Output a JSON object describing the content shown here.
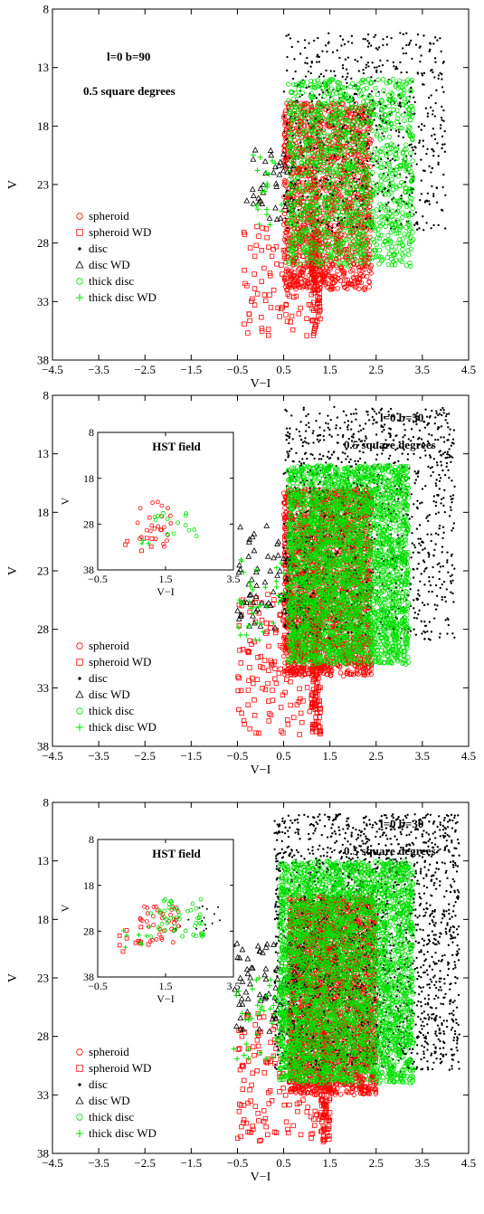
{
  "chart_data": [
    {
      "type": "scatter",
      "xlabel": "V−I",
      "ylabel": "V",
      "xlim": [
        -4.5,
        4.5
      ],
      "ylim": [
        8,
        38
      ],
      "y_inverted": true,
      "xticks": [
        "−4.5",
        "−3.5",
        "−2.5",
        "−1.5",
        "−0.5",
        "0.5",
        "1.5",
        "2.5",
        "3.5",
        "4.5"
      ],
      "yticks": [
        "8",
        "13",
        "18",
        "23",
        "28",
        "33",
        "38"
      ],
      "annotations": [
        "l=0 b=90",
        "0.5 square degrees"
      ],
      "legend_position": "left-middle",
      "series": [
        {
          "name": "spheroid",
          "marker": "circle-open",
          "color": "#ff0000",
          "regions": [
            {
              "x": [
                0.5,
                2.4
              ],
              "y": [
                16,
                32
              ],
              "n": 1400
            }
          ]
        },
        {
          "name": "spheroid WD",
          "marker": "square-open",
          "color": "#ff0000",
          "regions": [
            {
              "x": [
                -0.4,
                1.3
              ],
              "y": [
                26,
                36
              ],
              "n": 100
            },
            {
              "x": [
                1.1,
                1.3
              ],
              "y": [
                27,
                36
              ],
              "n": 80
            }
          ]
        },
        {
          "name": "disc",
          "marker": "dot",
          "color": "#000000",
          "regions": [
            {
              "x": [
                0.5,
                4.0
              ],
              "y": [
                10,
                27
              ],
              "n": 700
            }
          ]
        },
        {
          "name": "disc WD",
          "marker": "triangle-open",
          "color": "#000000",
          "regions": [
            {
              "x": [
                -0.3,
                0.8
              ],
              "y": [
                20,
                26
              ],
              "n": 40
            }
          ]
        },
        {
          "name": "thick disc",
          "marker": "circle-open",
          "color": "#00e000",
          "regions": [
            {
              "x": [
                0.6,
                3.3
              ],
              "y": [
                14,
                30
              ],
              "n": 1200
            }
          ]
        },
        {
          "name": "thick disc WD",
          "marker": "plus",
          "color": "#00e000",
          "regions": [
            {
              "x": [
                -0.2,
                1.2
              ],
              "y": [
                20,
                27
              ],
              "n": 30
            }
          ]
        }
      ]
    },
    {
      "type": "scatter",
      "xlabel": "V−I",
      "ylabel": "V",
      "xlim": [
        -4.5,
        4.5
      ],
      "ylim": [
        8,
        38
      ],
      "y_inverted": true,
      "xticks": [
        "−4.5",
        "−3.5",
        "−2.5",
        "−1.5",
        "−0.5",
        "0.5",
        "1.5",
        "2.5",
        "3.5",
        "4.5"
      ],
      "yticks": [
        "8",
        "13",
        "18",
        "23",
        "28",
        "33",
        "38"
      ],
      "annotations": [
        "l=0 b=50",
        "0.5 square degrees"
      ],
      "legend_position": "left-bottom",
      "series": [
        {
          "name": "spheroid",
          "marker": "circle-open",
          "color": "#ff0000",
          "regions": [
            {
              "x": [
                0.5,
                2.4
              ],
              "y": [
                16,
                32
              ],
              "n": 2200
            }
          ]
        },
        {
          "name": "spheroid WD",
          "marker": "square-open",
          "color": "#ff0000",
          "regions": [
            {
              "x": [
                -0.5,
                1.3
              ],
              "y": [
                25,
                37
              ],
              "n": 160
            },
            {
              "x": [
                1.1,
                1.3
              ],
              "y": [
                27,
                37
              ],
              "n": 100
            }
          ]
        },
        {
          "name": "disc",
          "marker": "dot",
          "color": "#000000",
          "regions": [
            {
              "x": [
                0.5,
                4.2
              ],
              "y": [
                9,
                29
              ],
              "n": 1200
            }
          ]
        },
        {
          "name": "disc WD",
          "marker": "triangle-open",
          "color": "#000000",
          "regions": [
            {
              "x": [
                -0.5,
                1.0
              ],
              "y": [
                19,
                28
              ],
              "n": 80
            }
          ]
        },
        {
          "name": "thick disc",
          "marker": "circle-open",
          "color": "#00e000",
          "regions": [
            {
              "x": [
                0.6,
                3.2
              ],
              "y": [
                14,
                31
              ],
              "n": 2800
            }
          ]
        },
        {
          "name": "thick disc WD",
          "marker": "plus",
          "color": "#00e000",
          "regions": [
            {
              "x": [
                -0.5,
                0.9
              ],
              "y": [
                22,
                29
              ],
              "n": 50
            }
          ]
        }
      ],
      "inset": {
        "title": "HST field",
        "xlabel": "V−I",
        "ylabel": "V",
        "xlim": [
          -0.5,
          4.0
        ],
        "ylim": [
          8,
          38
        ],
        "xticks": [
          "−0.5",
          "1.5",
          "3.5"
        ],
        "yticks": [
          "8",
          "18",
          "28",
          "38"
        ],
        "series": [
          {
            "name": "spheroid",
            "marker": "circle-open",
            "color": "#ff0000",
            "regions": [
              {
                "x": [
                  0.8,
                  2.0
                ],
                "y": [
                  23,
                  33
                ],
                "n": 25
              }
            ]
          },
          {
            "name": "spheroid WD",
            "marker": "square-open",
            "color": "#ff0000",
            "regions": [
              {
                "x": [
                  0.4,
                  1.3
                ],
                "y": [
                  31,
                  34
                ],
                "n": 6
              }
            ]
          },
          {
            "name": "thick disc",
            "marker": "circle-open",
            "color": "#00e000",
            "regions": [
              {
                "x": [
                  1.3,
                  2.9
                ],
                "y": [
                  25,
                  31
                ],
                "n": 15
              }
            ]
          },
          {
            "name": "thick disc WD",
            "marker": "plus",
            "color": "#00e000",
            "regions": [
              {
                "x": [
                  0.6,
                  1.3
                ],
                "y": [
                  29,
                  33
                ],
                "n": 3
              }
            ]
          }
        ]
      }
    },
    {
      "type": "scatter",
      "xlabel": "V−I",
      "ylabel": "V",
      "xlim": [
        -4.5,
        4.5
      ],
      "ylim": [
        8,
        38
      ],
      "y_inverted": true,
      "xticks": [
        "−4.5",
        "−3.5",
        "−2.5",
        "−1.5",
        "−0.5",
        "0.5",
        "1.5",
        "2.5",
        "3.5",
        "4.5"
      ],
      "yticks": [
        "8",
        "13",
        "18",
        "23",
        "28",
        "33",
        "38"
      ],
      "annotations": [
        "l=0 b=30",
        "0.5 square degrees"
      ],
      "legend_position": "left-bottom",
      "series": [
        {
          "name": "spheroid",
          "marker": "circle-open",
          "color": "#ff0000",
          "regions": [
            {
              "x": [
                0.6,
                2.5
              ],
              "y": [
                16,
                33
              ],
              "n": 2600
            }
          ]
        },
        {
          "name": "spheroid WD",
          "marker": "square-open",
          "color": "#ff0000",
          "regions": [
            {
              "x": [
                -0.5,
                1.4
              ],
              "y": [
                26,
                37
              ],
              "n": 160
            },
            {
              "x": [
                1.3,
                1.5
              ],
              "y": [
                28,
                37
              ],
              "n": 100
            }
          ]
        },
        {
          "name": "disc",
          "marker": "dot",
          "color": "#000000",
          "regions": [
            {
              "x": [
                0.3,
                4.3
              ],
              "y": [
                9,
                31
              ],
              "n": 2200
            }
          ]
        },
        {
          "name": "disc WD",
          "marker": "triangle-open",
          "color": "#000000",
          "regions": [
            {
              "x": [
                -0.6,
                1.0
              ],
              "y": [
                20,
                28
              ],
              "n": 90
            }
          ]
        },
        {
          "name": "thick disc",
          "marker": "circle-open",
          "color": "#00e000",
          "regions": [
            {
              "x": [
                0.4,
                3.3
              ],
              "y": [
                13,
                32
              ],
              "n": 3200
            }
          ]
        },
        {
          "name": "thick disc WD",
          "marker": "plus",
          "color": "#00e000",
          "regions": [
            {
              "x": [
                -0.6,
                1.0
              ],
              "y": [
                23,
                30
              ],
              "n": 60
            }
          ]
        }
      ],
      "inset": {
        "title": "HST field",
        "xlabel": "V−I",
        "ylabel": "V",
        "xlim": [
          -0.5,
          4.0
        ],
        "ylim": [
          8,
          38
        ],
        "xticks": [
          "−0.5",
          "1.5",
          "3.5"
        ],
        "yticks": [
          "8",
          "18",
          "28",
          "38"
        ],
        "series": [
          {
            "name": "disc",
            "marker": "dot",
            "color": "#000000",
            "regions": [
              {
                "x": [
                  2.0,
                  3.6
                ],
                "y": [
                  22,
                  28
                ],
                "n": 18
              }
            ]
          },
          {
            "name": "spheroid",
            "marker": "circle-open",
            "color": "#ff0000",
            "regions": [
              {
                "x": [
                  0.9,
                  2.2
                ],
                "y": [
                  22,
                  31
                ],
                "n": 40
              }
            ]
          },
          {
            "name": "spheroid WD",
            "marker": "square-open",
            "color": "#ff0000",
            "regions": [
              {
                "x": [
                  0.2,
                  1.3
                ],
                "y": [
                  27,
                  33
                ],
                "n": 10
              }
            ]
          },
          {
            "name": "thick disc",
            "marker": "circle-open",
            "color": "#00e000",
            "regions": [
              {
                "x": [
                  1.2,
                  3.0
                ],
                "y": [
                  21,
                  30
                ],
                "n": 50
              }
            ]
          },
          {
            "name": "thick disc WD",
            "marker": "plus",
            "color": "#00e000",
            "regions": [
              {
                "x": [
                  0.3,
                  1.3
                ],
                "y": [
                  27,
                  33
                ],
                "n": 8
              }
            ]
          }
        ]
      }
    }
  ]
}
